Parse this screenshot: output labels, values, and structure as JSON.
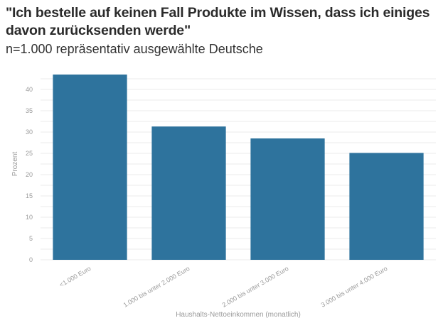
{
  "chart_data": {
    "type": "bar",
    "title": "\"Ich bestelle auf keinen Fall Produkte im Wissen, dass ich einiges davon zurücksenden werde\"",
    "subtitle": "n=1.000 repräsentativ ausgewählte Deutsche",
    "xlabel": "Haushalts-Nettoeinkommen (monatlich)",
    "ylabel": "Prozent",
    "categories": [
      "<1.000 Euro",
      "1.000 bis unter 2.000 Euro",
      "2.000 bis unter 3.000 Euro",
      "3.000 bis unter 4.000 Euro"
    ],
    "values": [
      43.5,
      31.3,
      28.5,
      25.1
    ],
    "ylim": [
      0,
      45
    ],
    "yticks": [
      "0",
      "5",
      "10",
      "15",
      "20",
      "25",
      "30",
      "35",
      "40"
    ],
    "bar_color": "#2e739d",
    "grid": true
  }
}
